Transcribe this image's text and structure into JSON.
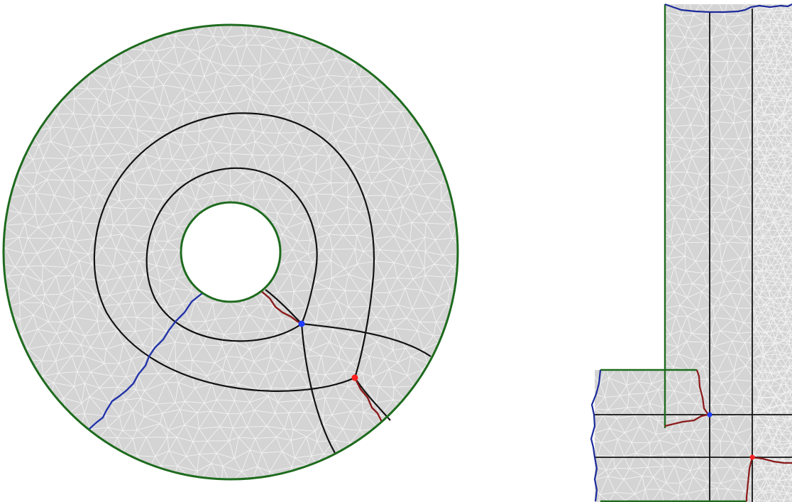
{
  "figure": {
    "panels": [
      {
        "id": "annulus",
        "mesh_fill": "#d4d4d4",
        "mesh_line": "#f2f2f2",
        "boundary_color": "#1e6b1e",
        "interior_curve_color": "#111111",
        "cut_blue_color": "#2233aa",
        "cut_red_color": "#8b1a1a",
        "vertex_blue": "#1f3cff",
        "vertex_red": "#ff2020"
      },
      {
        "id": "l-shape",
        "mesh_fill": "#d4d4d4",
        "mesh_line": "#f2f2f2",
        "boundary_green": "#1e6b1e",
        "boundary_blue": "#1b2a9a",
        "interior_line_color": "#111111",
        "cut_red_color": "#8b1a1a",
        "vertex_blue": "#1f3cff",
        "vertex_red": "#ff2020"
      }
    ]
  }
}
